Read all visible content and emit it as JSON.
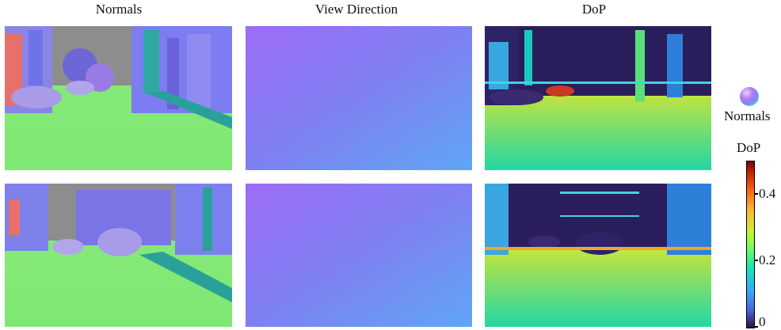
{
  "columns": [
    {
      "id": "normals",
      "title": "Normals"
    },
    {
      "id": "view",
      "title": "View Direction"
    },
    {
      "id": "dop",
      "title": "DoP"
    }
  ],
  "rows": 2,
  "legend": {
    "normals_label": "Normals",
    "dop_label": "DoP",
    "colorbar": {
      "colormap": "turbo",
      "min": 0,
      "max": 0.5,
      "ticks": [
        {
          "value": 0,
          "label": "0"
        },
        {
          "value": 0.2,
          "label": "0.2"
        },
        {
          "value": 0.4,
          "label": "0.4"
        }
      ]
    }
  },
  "colors": {
    "normals_ground": "#86EA7A",
    "normals_facade": "#7A7AF0",
    "normals_sky": "#8E8E8E",
    "view_top_left": "#9B6CF5",
    "view_bottom_right": "#63A2F5",
    "dop_low": "#2B1E5C",
    "dop_high": "#F0A62C"
  }
}
